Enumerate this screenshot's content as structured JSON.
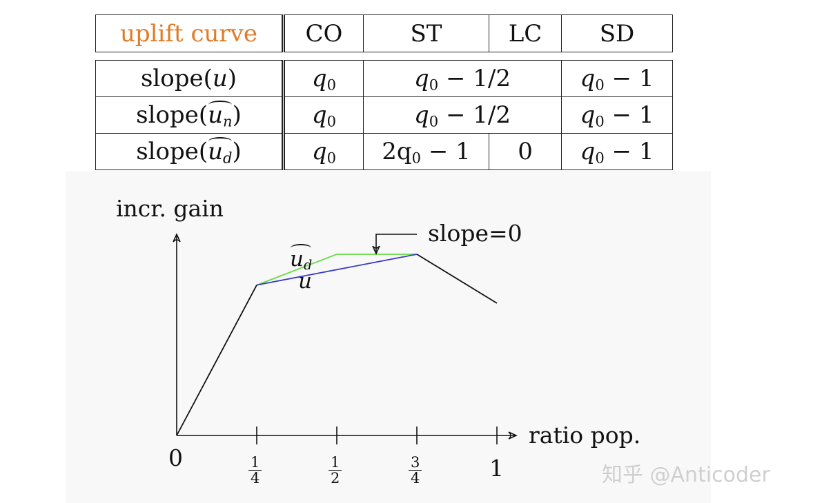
{
  "table": {
    "header": {
      "label": "uplift curve",
      "columns": [
        "CO",
        "ST",
        "LC",
        "SD"
      ]
    },
    "rows": [
      {
        "label_prefix": "slope(",
        "var": "u",
        "sub": "",
        "label_suffix": ")",
        "co": "q",
        "co_sub": "0",
        "st_lc_merged": true,
        "st_lc": "q",
        "st_lc_sub": "0",
        "st_lc_rest": " − 1/2",
        "sd": "q",
        "sd_sub": "0",
        "sd_rest": " − 1"
      },
      {
        "label_prefix": "slope(",
        "var": "u",
        "sub": "n",
        "label_suffix": ")",
        "co": "q",
        "co_sub": "0",
        "st_lc_merged": true,
        "st_lc": "q",
        "st_lc_sub": "0",
        "st_lc_rest": " − 1/2",
        "sd": "q",
        "sd_sub": "0",
        "sd_rest": " − 1"
      },
      {
        "label_prefix": "slope(",
        "var": "u",
        "sub": "d",
        "label_suffix": ")",
        "co": "q",
        "co_sub": "0",
        "st_lc_merged": false,
        "st_pre": "2q",
        "st_sub": "0",
        "st_rest": " − 1",
        "lc": "0",
        "sd": "q",
        "sd_sub": "0",
        "sd_rest": " − 1"
      }
    ]
  },
  "chart_data": {
    "type": "line",
    "ylabel": "incr. gain",
    "xlabel": "ratio pop.",
    "origin_label": "0",
    "xlim": [
      0,
      1
    ],
    "ylim": [
      0,
      1
    ],
    "x_ticks": [
      {
        "value": 0.25,
        "num": "1",
        "den": "4"
      },
      {
        "value": 0.5,
        "num": "1",
        "den": "2"
      },
      {
        "value": 0.75,
        "num": "3",
        "den": "4"
      },
      {
        "value": 1,
        "label": "1"
      }
    ],
    "series": [
      {
        "name": "u",
        "color": "#3a3ac8",
        "x": [
          0.25,
          0.75
        ],
        "y": [
          0.83,
          1.0
        ]
      },
      {
        "name": "u",
        "sub": "d",
        "color": "#66dd44",
        "x": [
          0.25,
          0.5,
          0.75
        ],
        "y": [
          0.83,
          1.0,
          1.0
        ]
      },
      {
        "color": "#111111",
        "x": [
          0,
          0.25
        ],
        "y": [
          0,
          0.83
        ]
      },
      {
        "color": "#111111",
        "x": [
          0.75,
          1.0
        ],
        "y": [
          1.0,
          0.73
        ]
      }
    ],
    "annotation": {
      "text": "slope=0",
      "x": 0.625,
      "y": 1.0
    }
  },
  "watermark": "知乎 @Anticoder"
}
